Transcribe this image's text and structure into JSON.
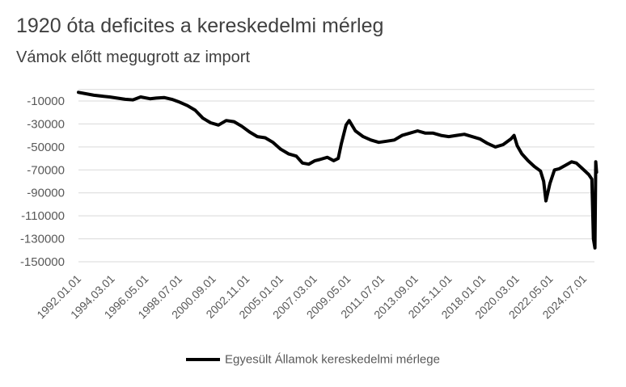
{
  "chart_data": {
    "type": "line",
    "title": "1920 óta deficites a kereskedelmi mérleg",
    "subtitle": "Vámok előtt megugrott az import",
    "xlabel": "",
    "ylabel": "",
    "ylim": [
      -150000,
      0
    ],
    "y_ticks": [
      -10000,
      -30000,
      -50000,
      -70000,
      -90000,
      -110000,
      -130000,
      -150000
    ],
    "x_tick_labels": [
      "1992.01.01",
      "1994.03.01",
      "1996.05.01",
      "1998.07.01",
      "2000.09.01",
      "2002.11.01",
      "2005.01.01",
      "2007.03.01",
      "2009.05.01",
      "2011.07.01",
      "2013.09.01",
      "2015.11.01",
      "2018.01.01",
      "2020.03.01",
      "2022.05.01",
      "2024.07.01"
    ],
    "x_range": [
      "1992.01.01",
      "2025.03.01"
    ],
    "grid": "horizontal",
    "legend_position": "bottom",
    "series": [
      {
        "name": "Egyesült Államok kereskedelmi mérlege",
        "color": "#000000",
        "points": [
          [
            1992.0,
            -2500
          ],
          [
            1993.0,
            -5000
          ],
          [
            1994.0,
            -6500
          ],
          [
            1995.0,
            -8500
          ],
          [
            1995.5,
            -9000
          ],
          [
            1996.0,
            -6500
          ],
          [
            1996.6,
            -8000
          ],
          [
            1997.0,
            -7500
          ],
          [
            1997.5,
            -7000
          ],
          [
            1998.0,
            -8500
          ],
          [
            1998.5,
            -11000
          ],
          [
            1999.0,
            -14000
          ],
          [
            1999.5,
            -18000
          ],
          [
            2000.0,
            -25000
          ],
          [
            2000.5,
            -29000
          ],
          [
            2001.0,
            -31000
          ],
          [
            2001.5,
            -27000
          ],
          [
            2002.0,
            -28000
          ],
          [
            2002.5,
            -32000
          ],
          [
            2003.0,
            -37000
          ],
          [
            2003.5,
            -41000
          ],
          [
            2004.0,
            -42000
          ],
          [
            2004.5,
            -46000
          ],
          [
            2005.0,
            -52000
          ],
          [
            2005.5,
            -56000
          ],
          [
            2006.0,
            -58000
          ],
          [
            2006.4,
            -64000
          ],
          [
            2006.8,
            -65000
          ],
          [
            2007.2,
            -62000
          ],
          [
            2007.5,
            -61000
          ],
          [
            2008.0,
            -59000
          ],
          [
            2008.4,
            -62000
          ],
          [
            2008.7,
            -60000
          ],
          [
            2008.9,
            -47000
          ],
          [
            2009.2,
            -31000
          ],
          [
            2009.4,
            -27000
          ],
          [
            2009.8,
            -36000
          ],
          [
            2010.3,
            -41000
          ],
          [
            2010.8,
            -44000
          ],
          [
            2011.3,
            -46000
          ],
          [
            2011.8,
            -45000
          ],
          [
            2012.3,
            -44000
          ],
          [
            2012.8,
            -40000
          ],
          [
            2013.3,
            -38000
          ],
          [
            2013.8,
            -36000
          ],
          [
            2014.3,
            -38000
          ],
          [
            2014.8,
            -38000
          ],
          [
            2015.3,
            -40000
          ],
          [
            2015.8,
            -41000
          ],
          [
            2016.3,
            -40000
          ],
          [
            2016.8,
            -39000
          ],
          [
            2017.3,
            -41000
          ],
          [
            2017.8,
            -43000
          ],
          [
            2018.3,
            -47000
          ],
          [
            2018.8,
            -50000
          ],
          [
            2019.3,
            -48000
          ],
          [
            2019.8,
            -43000
          ],
          [
            2020.0,
            -40000
          ],
          [
            2020.2,
            -49000
          ],
          [
            2020.5,
            -56000
          ],
          [
            2020.9,
            -62000
          ],
          [
            2021.3,
            -67000
          ],
          [
            2021.7,
            -71000
          ],
          [
            2021.9,
            -80000
          ],
          [
            2022.05,
            -97000
          ],
          [
            2022.3,
            -82000
          ],
          [
            2022.6,
            -70000
          ],
          [
            2022.9,
            -69000
          ],
          [
            2023.3,
            -66000
          ],
          [
            2023.7,
            -63000
          ],
          [
            2024.0,
            -64000
          ],
          [
            2024.4,
            -69000
          ],
          [
            2024.8,
            -74000
          ],
          [
            2025.0,
            -78000
          ],
          [
            2025.1,
            -130000
          ],
          [
            2025.2,
            -138000
          ],
          [
            2025.25,
            -63000
          ],
          [
            2025.3,
            -72000
          ]
        ]
      }
    ]
  }
}
